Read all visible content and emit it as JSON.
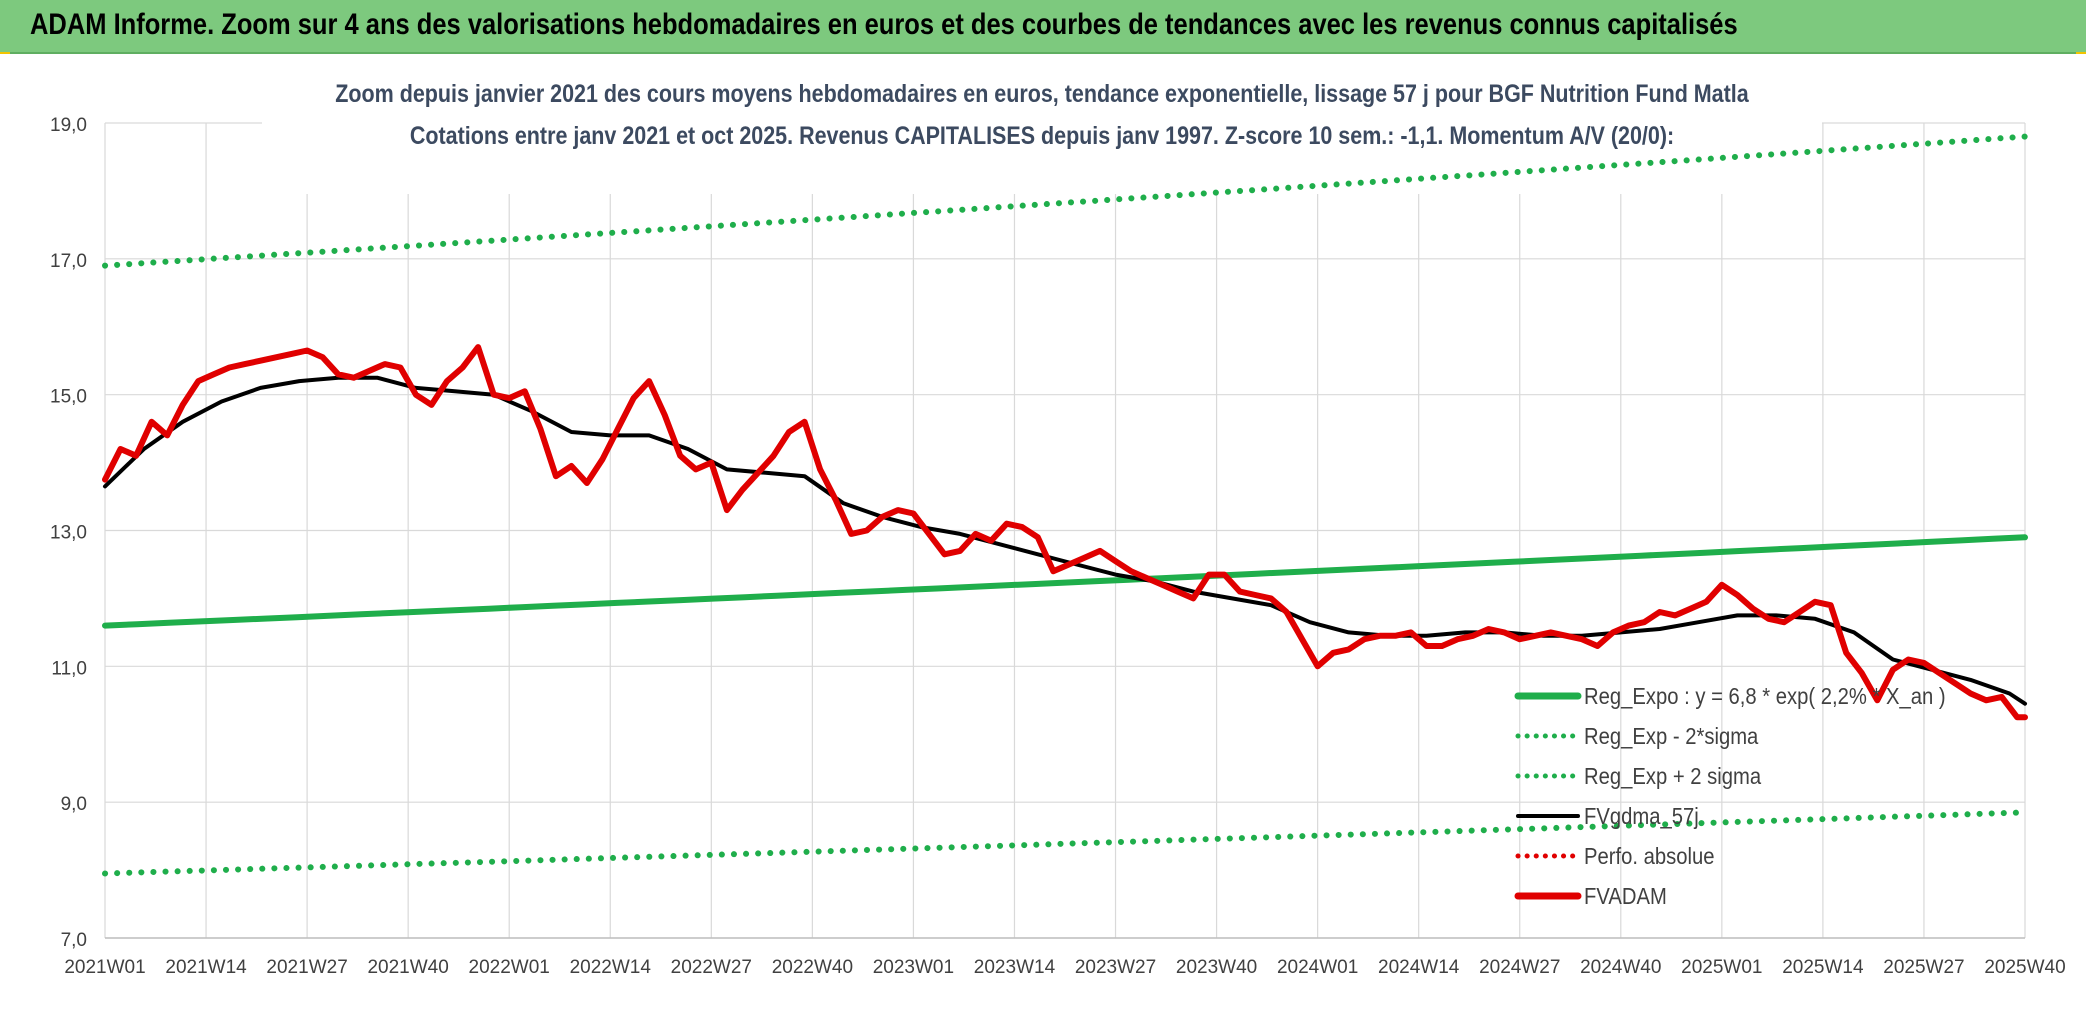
{
  "banner": {
    "title": "ADAM Informe. Zoom sur 4 ans des valorisations hebdomadaires en euros et des courbes de tendances avec les revenus connus capitalisés"
  },
  "chart_data": {
    "type": "line",
    "title_line1": "Zoom depuis janvier 2021 des cours moyens hebdomadaires en euros, tendance exponentielle, lissage 57 j pour BGF Nutrition Fund Matla",
    "title_line2": "Cotations entre janv 2021 et oct 2025. Revenus CAPITALISES depuis janv 1997. Z-score 10 sem.: -1,1. Momentum A/V (20/0):",
    "x_tick_labels": [
      "2021W01",
      "2021W14",
      "2021W27",
      "2021W40",
      "2022W01",
      "2022W14",
      "2022W27",
      "2022W40",
      "2023W01",
      "2023W14",
      "2023W27",
      "2023W40",
      "2024W01",
      "2024W14",
      "2024W27",
      "2024W40",
      "2025W01",
      "2025W14",
      "2025W27",
      "2025W40"
    ],
    "y_tick_labels": [
      "7,0",
      "9,0",
      "11,0",
      "13,0",
      "15,0",
      "17,0",
      "19,0"
    ],
    "ylim": [
      7,
      19
    ],
    "x_range_weeks": [
      0,
      247
    ],
    "grid": true,
    "legend_position": "bottom-right",
    "legend": [
      {
        "label": "Reg_Expo : y = 6,8 * exp( 2,2% * X_an )",
        "color": "#1fae4b",
        "style": "solid-thick"
      },
      {
        "label": "Reg_Exp - 2*sigma",
        "color": "#1fae4b",
        "style": "dotted"
      },
      {
        "label": "Reg_Exp + 2 sigma",
        "color": "#1fae4b",
        "style": "dotted"
      },
      {
        "label": "FVgdma_57j",
        "color": "#000000",
        "style": "solid"
      },
      {
        "label": "Perfo. absolue",
        "color": "#e00000",
        "style": "dotted"
      },
      {
        "label": "FVADAM",
        "color": "#e00000",
        "style": "solid-thick"
      }
    ],
    "series": [
      {
        "name": "Reg_Expo",
        "color": "#1fae4b",
        "x": [
          0,
          247
        ],
        "y": [
          11.6,
          12.9
        ]
      },
      {
        "name": "Reg_Exp - 2*sigma",
        "color": "#1fae4b",
        "x": [
          0,
          247
        ],
        "y": [
          7.95,
          8.85
        ]
      },
      {
        "name": "Reg_Exp + 2 sigma",
        "color": "#1fae4b",
        "x": [
          0,
          247
        ],
        "y": [
          16.9,
          18.8
        ]
      },
      {
        "name": "FVgdma_57j",
        "color": "#000000",
        "x": [
          0,
          5,
          10,
          15,
          20,
          25,
          30,
          35,
          40,
          45,
          50,
          55,
          60,
          65,
          70,
          75,
          80,
          85,
          90,
          95,
          100,
          105,
          110,
          115,
          120,
          125,
          130,
          135,
          140,
          145,
          150,
          155,
          160,
          165,
          170,
          175,
          180,
          185,
          190,
          195,
          200,
          205,
          210,
          215,
          220,
          225,
          230,
          235,
          240,
          245,
          247
        ],
        "y": [
          13.65,
          14.2,
          14.6,
          14.9,
          15.1,
          15.2,
          15.25,
          15.25,
          15.1,
          15.05,
          15.0,
          14.75,
          14.45,
          14.4,
          14.4,
          14.2,
          13.9,
          13.85,
          13.8,
          13.4,
          13.2,
          13.05,
          12.95,
          12.8,
          12.65,
          12.5,
          12.35,
          12.25,
          12.1,
          12.0,
          11.9,
          11.65,
          11.5,
          11.45,
          11.45,
          11.5,
          11.5,
          11.45,
          11.45,
          11.5,
          11.55,
          11.65,
          11.75,
          11.75,
          11.7,
          11.5,
          11.1,
          10.95,
          10.8,
          10.6,
          10.45
        ]
      },
      {
        "name": "FVADAM",
        "color": "#e00000",
        "x": [
          0,
          2,
          4,
          6,
          8,
          10,
          12,
          14,
          16,
          18,
          20,
          22,
          24,
          26,
          28,
          30,
          32,
          34,
          36,
          38,
          40,
          42,
          44,
          46,
          48,
          50,
          52,
          54,
          56,
          58,
          60,
          62,
          64,
          66,
          68,
          70,
          72,
          74,
          76,
          78,
          80,
          82,
          84,
          86,
          88,
          90,
          92,
          94,
          96,
          98,
          100,
          102,
          104,
          106,
          108,
          110,
          112,
          114,
          116,
          118,
          120,
          122,
          124,
          126,
          128,
          130,
          132,
          134,
          136,
          138,
          140,
          142,
          144,
          146,
          148,
          150,
          152,
          154,
          156,
          158,
          160,
          162,
          164,
          166,
          168,
          170,
          172,
          174,
          176,
          178,
          180,
          182,
          184,
          186,
          188,
          190,
          192,
          194,
          196,
          198,
          200,
          202,
          204,
          206,
          208,
          210,
          212,
          214,
          216,
          218,
          220,
          222,
          224,
          226,
          228,
          230,
          232,
          234,
          236,
          238,
          240,
          242,
          244,
          246,
          247
        ],
        "y": [
          13.75,
          14.2,
          14.1,
          14.6,
          14.4,
          14.85,
          15.2,
          15.3,
          15.4,
          15.45,
          15.5,
          15.55,
          15.6,
          15.65,
          15.55,
          15.3,
          15.25,
          15.35,
          15.45,
          15.4,
          15.0,
          14.85,
          15.2,
          15.4,
          15.7,
          15.0,
          14.95,
          15.05,
          14.5,
          13.8,
          13.95,
          13.7,
          14.05,
          14.5,
          14.95,
          15.2,
          14.7,
          14.1,
          13.9,
          14.0,
          13.3,
          13.6,
          13.85,
          14.1,
          14.45,
          14.6,
          13.9,
          13.45,
          12.95,
          13.0,
          13.2,
          13.3,
          13.25,
          12.95,
          12.65,
          12.7,
          12.95,
          12.85,
          13.1,
          13.05,
          12.9,
          12.4,
          12.5,
          12.6,
          12.7,
          12.55,
          12.4,
          12.3,
          12.2,
          12.1,
          12.0,
          12.35,
          12.35,
          12.1,
          12.05,
          12.0,
          11.8,
          11.4,
          11.0,
          11.2,
          11.25,
          11.4,
          11.45,
          11.45,
          11.5,
          11.3,
          11.3,
          11.4,
          11.45,
          11.55,
          11.5,
          11.4,
          11.45,
          11.5,
          11.45,
          11.4,
          11.3,
          11.5,
          11.6,
          11.65,
          11.8,
          11.75,
          11.85,
          11.95,
          12.2,
          12.05,
          11.85,
          11.7,
          11.65,
          11.8,
          11.95,
          11.9,
          11.2,
          10.9,
          10.5,
          10.95,
          11.1,
          11.05,
          10.9,
          10.75,
          10.6,
          10.5,
          10.55,
          10.25,
          10.25
        ]
      }
    ]
  }
}
